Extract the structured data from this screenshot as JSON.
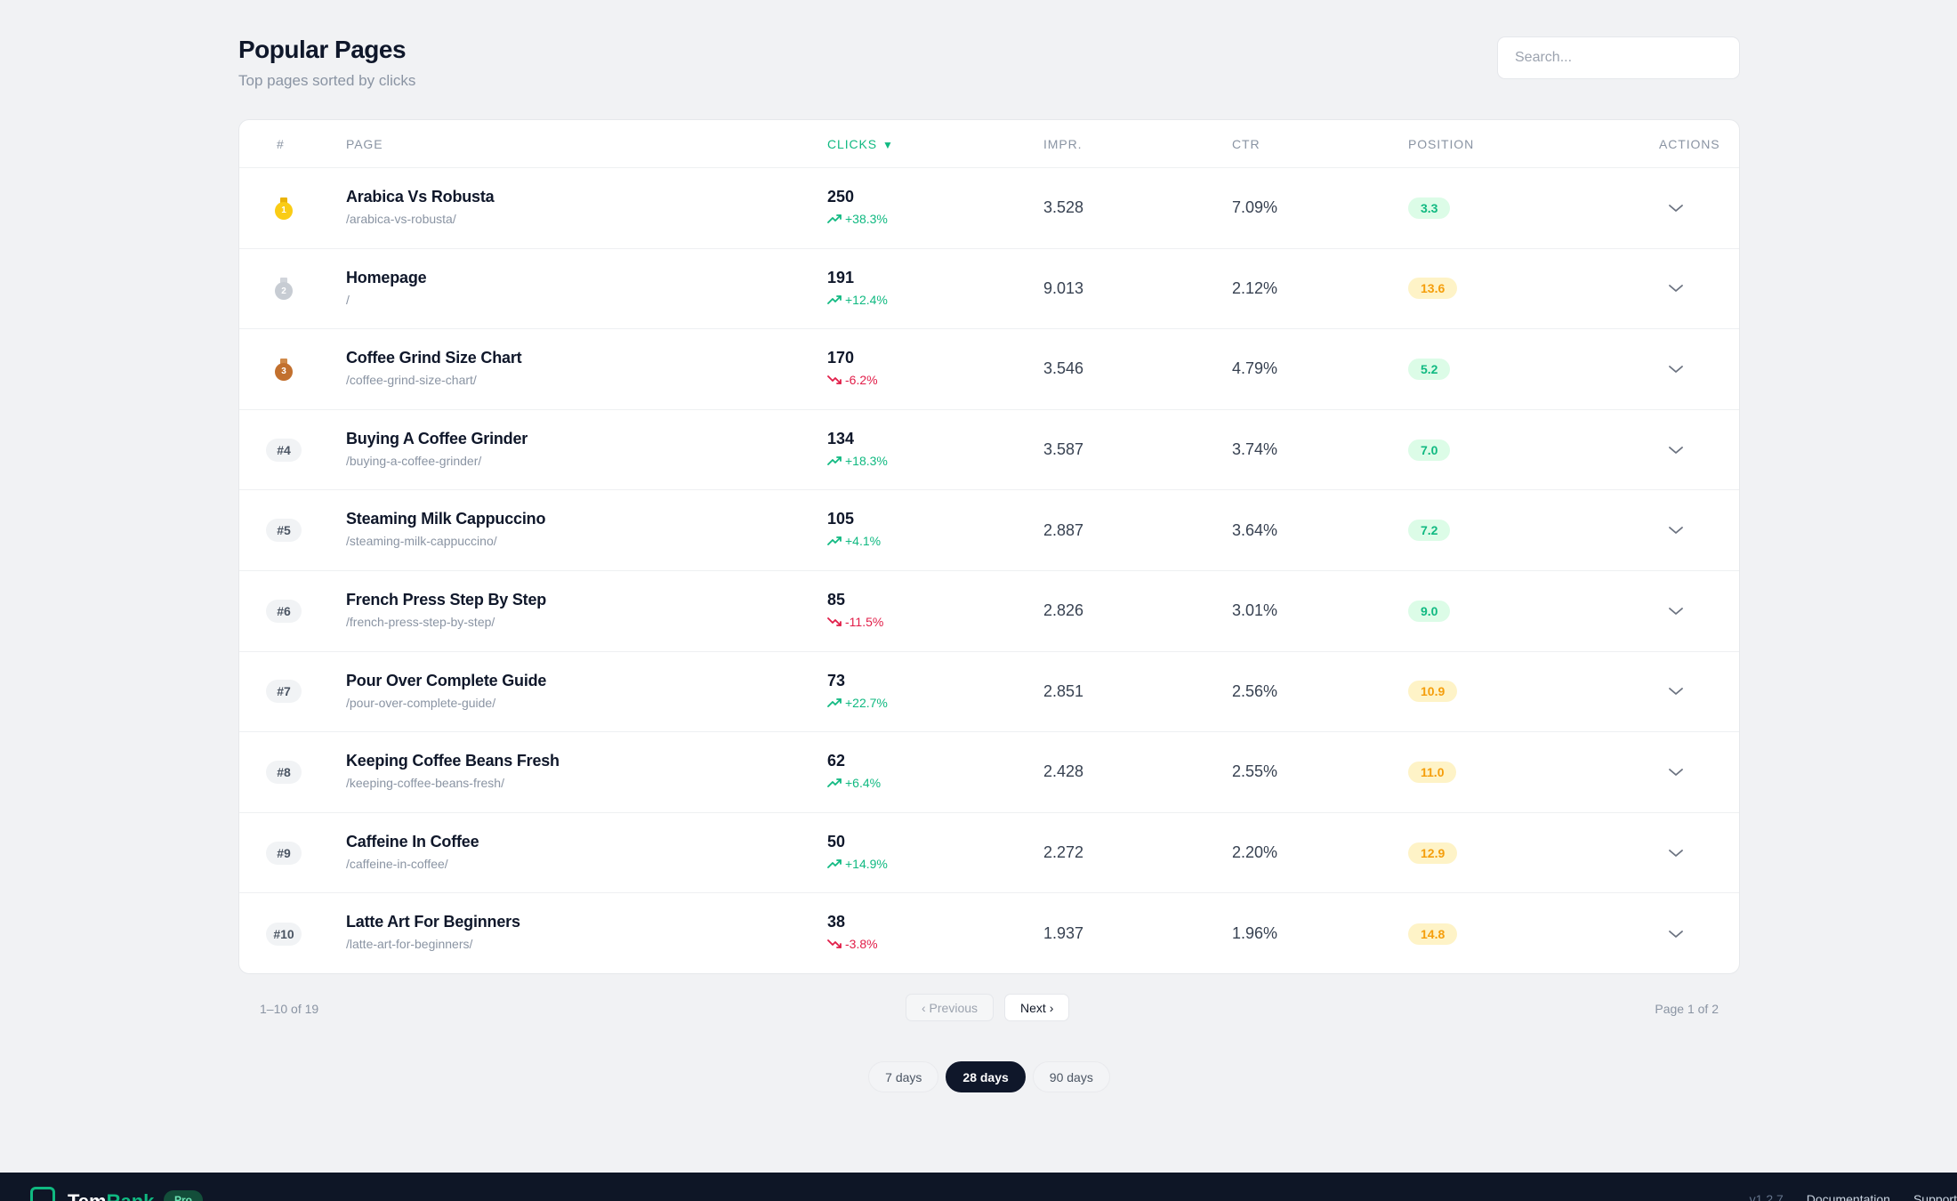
{
  "header": {
    "title": "Popular Pages",
    "subtitle": "Top pages sorted by clicks",
    "search_placeholder": "Search..."
  },
  "table": {
    "columns": {
      "rank": "#",
      "page": "PAGE",
      "clicks": "CLICKS",
      "impr": "IMPR.",
      "ctr": "CTR",
      "position": "POSITION",
      "actions": "ACTIONS"
    },
    "sort_indicator": "▼",
    "rows": [
      {
        "rank": "1",
        "medal": "gold",
        "name": "Arabica Vs Robusta",
        "url": "/arabica-vs-robusta/",
        "clicks": "250",
        "delta": "+38.3%",
        "trend": "up",
        "impr": "3.528",
        "ctr": "7.09%",
        "position": "3.3",
        "pos_level": "good"
      },
      {
        "rank": "2",
        "medal": "silver",
        "name": "Homepage",
        "url": "/",
        "clicks": "191",
        "delta": "+12.4%",
        "trend": "up",
        "impr": "9.013",
        "ctr": "2.12%",
        "position": "13.6",
        "pos_level": "mid"
      },
      {
        "rank": "3",
        "medal": "bronze",
        "name": "Coffee Grind Size Chart",
        "url": "/coffee-grind-size-chart/",
        "clicks": "170",
        "delta": "-6.2%",
        "trend": "down",
        "impr": "3.546",
        "ctr": "4.79%",
        "position": "5.2",
        "pos_level": "good"
      },
      {
        "rank": "#4",
        "medal": "",
        "name": "Buying A Coffee Grinder",
        "url": "/buying-a-coffee-grinder/",
        "clicks": "134",
        "delta": "+18.3%",
        "trend": "up",
        "impr": "3.587",
        "ctr": "3.74%",
        "position": "7.0",
        "pos_level": "good"
      },
      {
        "rank": "#5",
        "medal": "",
        "name": "Steaming Milk Cappuccino",
        "url": "/steaming-milk-cappuccino/",
        "clicks": "105",
        "delta": "+4.1%",
        "trend": "up",
        "impr": "2.887",
        "ctr": "3.64%",
        "position": "7.2",
        "pos_level": "good"
      },
      {
        "rank": "#6",
        "medal": "",
        "name": "French Press Step By Step",
        "url": "/french-press-step-by-step/",
        "clicks": "85",
        "delta": "-11.5%",
        "trend": "down",
        "impr": "2.826",
        "ctr": "3.01%",
        "position": "9.0",
        "pos_level": "good"
      },
      {
        "rank": "#7",
        "medal": "",
        "name": "Pour Over Complete Guide",
        "url": "/pour-over-complete-guide/",
        "clicks": "73",
        "delta": "+22.7%",
        "trend": "up",
        "impr": "2.851",
        "ctr": "2.56%",
        "position": "10.9",
        "pos_level": "mid"
      },
      {
        "rank": "#8",
        "medal": "",
        "name": "Keeping Coffee Beans Fresh",
        "url": "/keeping-coffee-beans-fresh/",
        "clicks": "62",
        "delta": "+6.4%",
        "trend": "up",
        "impr": "2.428",
        "ctr": "2.55%",
        "position": "11.0",
        "pos_level": "mid"
      },
      {
        "rank": "#9",
        "medal": "",
        "name": "Caffeine In Coffee",
        "url": "/caffeine-in-coffee/",
        "clicks": "50",
        "delta": "+14.9%",
        "trend": "up",
        "impr": "2.272",
        "ctr": "2.20%",
        "position": "12.9",
        "pos_level": "mid"
      },
      {
        "rank": "#10",
        "medal": "",
        "name": "Latte Art For Beginners",
        "url": "/latte-art-for-beginners/",
        "clicks": "38",
        "delta": "-3.8%",
        "trend": "down",
        "impr": "1.937",
        "ctr": "1.96%",
        "position": "14.8",
        "pos_level": "mid"
      }
    ]
  },
  "pagination": {
    "count": "1–10 of 19",
    "previous": "‹ Previous",
    "next": "Next ›",
    "page": "Page 1 of 2"
  },
  "ranges": [
    {
      "label": "7 days",
      "active": false
    },
    {
      "label": "28 days",
      "active": true
    },
    {
      "label": "90 days",
      "active": false
    }
  ],
  "footer": {
    "brand_a": "Tem",
    "brand_b": "Rank",
    "badge": "Pro",
    "version": "v1.2.7",
    "links": [
      "Documentation",
      "Support"
    ]
  },
  "colors": {
    "gold": "#facc15",
    "gold_ribbon": "#eab308",
    "silver": "#c7ccd3",
    "silver_ribbon": "#d1d5db",
    "bronze": "#c2702e",
    "bronze_ribbon": "#d08a4a",
    "accent": "#10b981",
    "negative": "#e11d48"
  },
  "icons": {
    "trend_up": "trending-up-icon",
    "trend_down": "trending-down-icon",
    "expand": "chevron-down-icon",
    "medal": "medal-icon"
  }
}
